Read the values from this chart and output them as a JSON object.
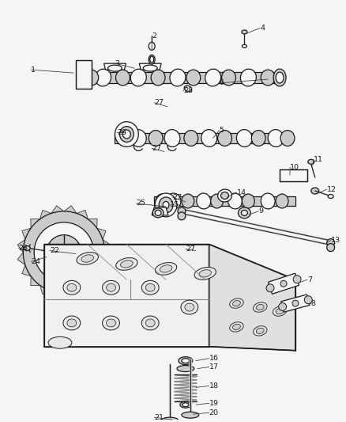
{
  "bg_color": "#f5f5f5",
  "line_color": "#1a1a1a",
  "lw": 0.9,
  "label_fontsize": 7.0,
  "fig_width": 4.38,
  "fig_height": 5.33,
  "dpi": 100
}
